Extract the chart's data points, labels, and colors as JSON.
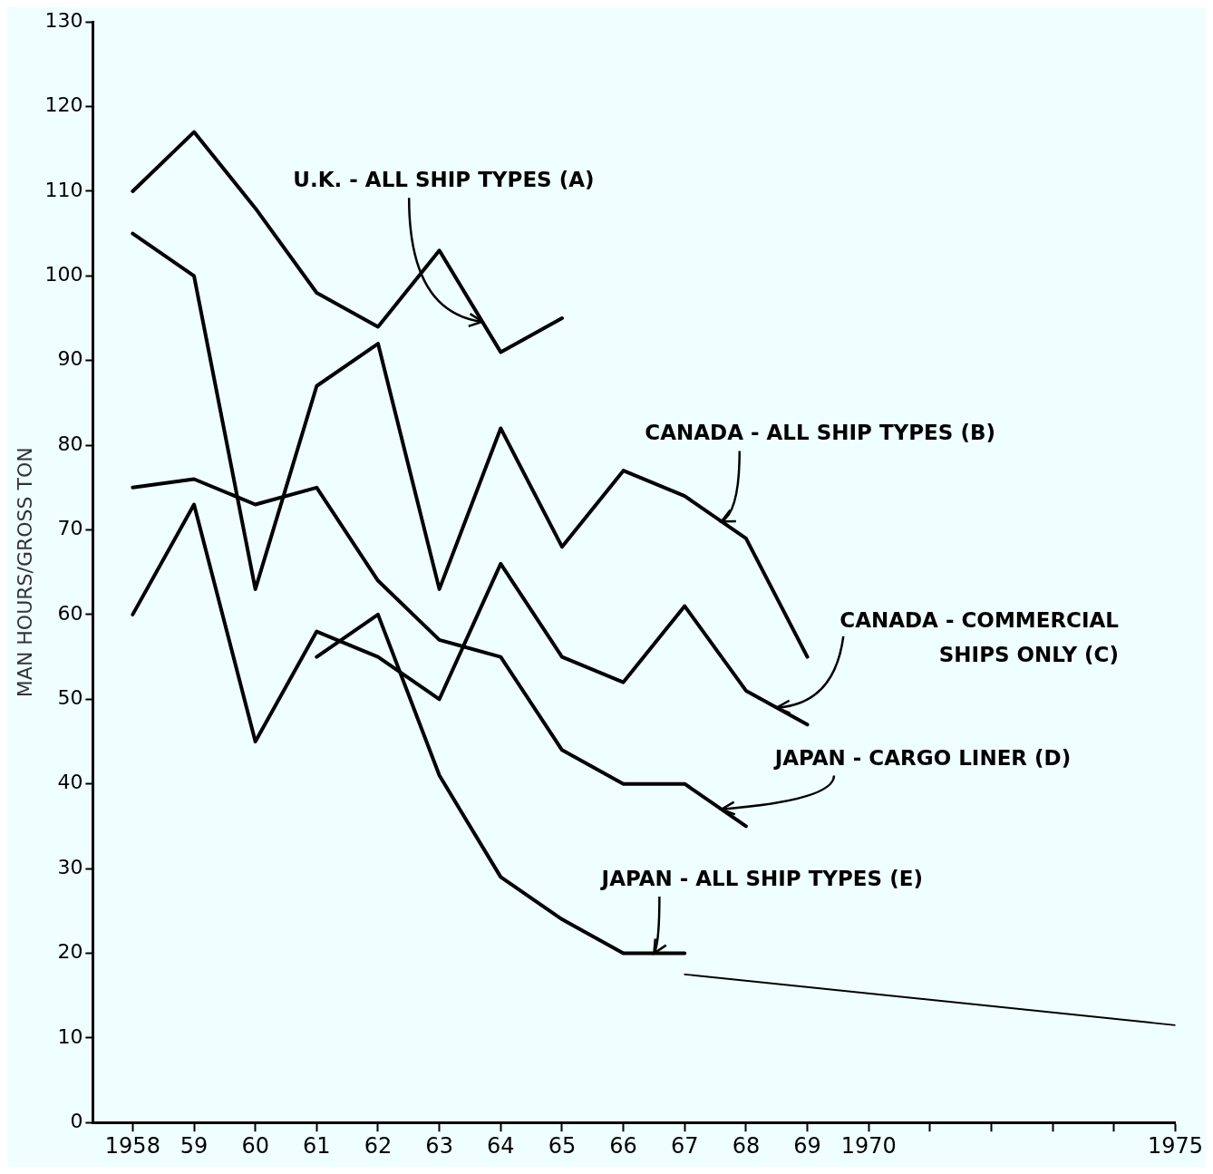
{
  "chart_data": {
    "type": "line",
    "ylabel": "MAN HOURS/GROSS TON",
    "xlim": [
      1957.35,
      1975
    ],
    "xticks": [
      {
        "value": 1958,
        "label": "1958"
      },
      {
        "value": 1959,
        "label": "59"
      },
      {
        "value": 1960,
        "label": "60"
      },
      {
        "value": 1961,
        "label": "61"
      },
      {
        "value": 1962,
        "label": "62"
      },
      {
        "value": 1963,
        "label": "63"
      },
      {
        "value": 1964,
        "label": "64"
      },
      {
        "value": 1965,
        "label": "65"
      },
      {
        "value": 1966,
        "label": "66"
      },
      {
        "value": 1967,
        "label": "67"
      },
      {
        "value": 1968,
        "label": "68"
      },
      {
        "value": 1969,
        "label": "69"
      },
      {
        "value": 1970,
        "label": "1970"
      },
      {
        "value": 1971,
        "label": null
      },
      {
        "value": 1972,
        "label": null
      },
      {
        "value": 1973,
        "label": null
      },
      {
        "value": 1974,
        "label": null
      },
      {
        "value": 1975,
        "label": "1975"
      }
    ],
    "ylim": [
      0,
      130
    ],
    "yticks": [
      0,
      10,
      20,
      30,
      40,
      50,
      60,
      70,
      80,
      90,
      100,
      110,
      120,
      130
    ],
    "grid": false,
    "legend": false,
    "marker": "none",
    "line_style": "solid",
    "series": [
      {
        "name": "U.K. - ALL SHIP TYPES (A)",
        "color": "#000000",
        "x": [
          1958,
          1959,
          1960,
          1961,
          1962,
          1963,
          1964,
          1965
        ],
        "values": [
          110,
          117,
          108,
          98,
          94,
          103,
          91,
          95
        ]
      },
      {
        "name": "CANADA - ALL SHIP TYPES (B)",
        "color": "#000000",
        "x": [
          1958,
          1959,
          1960,
          1961,
          1962,
          1963,
          1964,
          1965,
          1966,
          1967,
          1968,
          1969
        ],
        "values": [
          105,
          100,
          63,
          87,
          92,
          63,
          82,
          68,
          77,
          74,
          69,
          55
        ]
      },
      {
        "name": "CANADA - COMMERCIAL SHIPS ONLY (C)",
        "color": "#000000",
        "x": [
          1958,
          1959,
          1960,
          1961,
          1962,
          1963,
          1964,
          1965,
          1966,
          1967,
          1968,
          1969
        ],
        "values": [
          60,
          73,
          45,
          58,
          55,
          50,
          66,
          55,
          52,
          61,
          51,
          47
        ]
      },
      {
        "name": "JAPAN - CARGO LINER (D)",
        "color": "#000000",
        "x": [
          1958,
          1959,
          1960,
          1961,
          1962,
          1963,
          1964,
          1965,
          1966,
          1967,
          1968
        ],
        "values": [
          75,
          76,
          73,
          75,
          64,
          57,
          55,
          44,
          40,
          40,
          35
        ]
      },
      {
        "name": "JAPAN - ALL SHIP TYPES (E)",
        "color": "#000000",
        "x": [
          1961,
          1962,
          1963,
          1964,
          1965,
          1966,
          1967
        ],
        "values": [
          55,
          60,
          41,
          29,
          24,
          20,
          20
        ]
      },
      {
        "color": "#000000",
        "x": [
          1967,
          1975
        ],
        "values": [
          17.5,
          11.5
        ]
      }
    ]
  }
}
